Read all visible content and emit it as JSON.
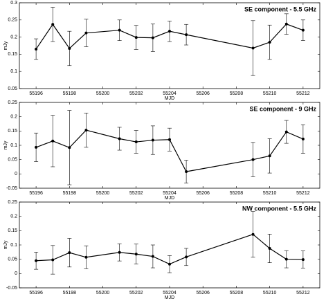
{
  "chart_data": [
    {
      "type": "line",
      "title": "SE component - 5.5 GHz",
      "xlabel": "MJD",
      "ylabel": "mJy",
      "x": [
        55196,
        55197,
        55198,
        55199,
        55201,
        55202,
        55203,
        55204,
        55205,
        55209,
        55210,
        55211,
        55212
      ],
      "series": [
        {
          "color": "#000000",
          "values": [
            0.165,
            0.237,
            0.167,
            0.212,
            0.22,
            0.199,
            0.198,
            0.217,
            0.207,
            0.168,
            0.185,
            0.238,
            0.22
          ],
          "errors": [
            0.03,
            0.05,
            0.05,
            0.04,
            0.03,
            0.035,
            0.04,
            0.03,
            0.03,
            0.08,
            0.05,
            0.03,
            0.03
          ]
        }
      ],
      "xlim": [
        55195,
        55213
      ],
      "xticks": [
        55196,
        55198,
        55200,
        55202,
        55204,
        55206,
        55208,
        55210,
        55212
      ],
      "ylim": [
        0.05,
        0.3
      ],
      "yticks": [
        0.05,
        0.1,
        0.15,
        0.2,
        0.25,
        0.3
      ]
    },
    {
      "type": "line",
      "title": "SE component - 9 GHz",
      "xlabel": "MJD",
      "ylabel": "mJy",
      "x": [
        55196,
        55197,
        55198,
        55199,
        55201,
        55202,
        55203,
        55204,
        55205,
        55209,
        55210,
        55211,
        55212
      ],
      "series": [
        {
          "color": "#000000",
          "values": [
            0.093,
            0.115,
            0.092,
            0.153,
            0.123,
            0.112,
            0.118,
            0.12,
            0.008,
            0.05,
            0.063,
            0.147,
            0.122
          ],
          "errors": [
            0.05,
            0.09,
            0.13,
            0.06,
            0.04,
            0.04,
            0.05,
            0.04,
            0.04,
            0.06,
            0.06,
            0.04,
            0.05
          ]
        }
      ],
      "xlim": [
        55195,
        55213
      ],
      "xticks": [
        55196,
        55198,
        55200,
        55202,
        55204,
        55206,
        55208,
        55210,
        55212
      ],
      "ylim": [
        -0.05,
        0.25
      ],
      "yticks": [
        -0.05,
        0,
        0.05,
        0.1,
        0.15,
        0.2,
        0.25
      ]
    },
    {
      "type": "line",
      "title": "NW component - 5.5 GHz",
      "xlabel": "MJD",
      "ylabel": "mJy",
      "x": [
        55196,
        55197,
        55198,
        55199,
        55201,
        55202,
        55203,
        55204,
        55205,
        55209,
        55210,
        55211,
        55212
      ],
      "series": [
        {
          "color": "#000000",
          "values": [
            0.045,
            0.048,
            0.073,
            0.057,
            0.074,
            0.068,
            0.06,
            0.033,
            0.058,
            0.137,
            0.088,
            0.05,
            0.049
          ],
          "errors": [
            0.03,
            0.05,
            0.05,
            0.04,
            0.03,
            0.035,
            0.04,
            0.03,
            0.03,
            0.08,
            0.05,
            0.03,
            0.03
          ]
        }
      ],
      "xlim": [
        55195,
        55213
      ],
      "xticks": [
        55196,
        55198,
        55200,
        55202,
        55204,
        55206,
        55208,
        55210,
        55212
      ],
      "ylim": [
        -0.05,
        0.25
      ],
      "yticks": [
        -0.05,
        0,
        0.05,
        0.1,
        0.15,
        0.2,
        0.25
      ]
    }
  ]
}
